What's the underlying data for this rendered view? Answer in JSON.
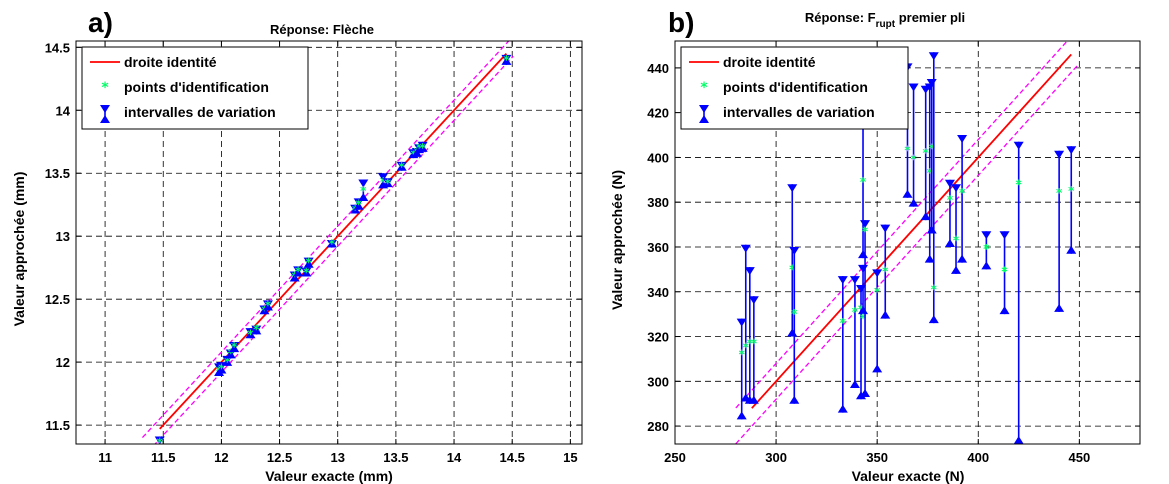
{
  "chart_data": [
    {
      "panel_letter": "a)",
      "type": "scatter",
      "title": "Réponse: Flèche",
      "xlabel": "Valeur exacte (mm)",
      "ylabel": "Valeur approchée (mm)",
      "xlim": [
        10.75,
        15.1
      ],
      "ylim": [
        11.35,
        14.55
      ],
      "xticks": [
        "11",
        "11.5",
        "12",
        "12.5",
        "13",
        "13.5",
        "14",
        "14.5",
        "15"
      ],
      "yticks": [
        "11.5",
        "12",
        "12.5",
        "13",
        "13.5",
        "14",
        "14.5"
      ],
      "grid": true,
      "legend_position": "top-left",
      "legend": [
        "droite identité",
        "points d'identification",
        "intervalles de variation"
      ],
      "identity_line": {
        "x": [
          11.47,
          14.45
        ],
        "color": "#ff0000"
      },
      "bound_lines": {
        "offset": 0.08,
        "color": "#ff00ff"
      },
      "points": [
        {
          "x": 11.47,
          "y": 11.36,
          "lo": 11.3,
          "hi": 11.41
        },
        {
          "x": 11.98,
          "y": 11.93,
          "lo": 11.89,
          "hi": 11.99
        },
        {
          "x": 12.0,
          "y": 11.95,
          "lo": 11.91,
          "hi": 12.0
        },
        {
          "x": 12.05,
          "y": 12.0,
          "lo": 11.97,
          "hi": 12.05
        },
        {
          "x": 12.08,
          "y": 12.07,
          "lo": 12.03,
          "hi": 12.1
        },
        {
          "x": 12.11,
          "y": 12.12,
          "lo": 12.08,
          "hi": 12.16
        },
        {
          "x": 12.25,
          "y": 12.22,
          "lo": 12.19,
          "hi": 12.27
        },
        {
          "x": 12.3,
          "y": 12.26,
          "lo": 12.22,
          "hi": 12.29
        },
        {
          "x": 12.37,
          "y": 12.41,
          "lo": 12.38,
          "hi": 12.45
        },
        {
          "x": 12.4,
          "y": 12.45,
          "lo": 12.41,
          "hi": 12.49
        },
        {
          "x": 12.63,
          "y": 12.68,
          "lo": 12.64,
          "hi": 12.72
        },
        {
          "x": 12.66,
          "y": 12.72,
          "lo": 12.68,
          "hi": 12.76
        },
        {
          "x": 12.73,
          "y": 12.71,
          "lo": 12.68,
          "hi": 12.75
        },
        {
          "x": 12.75,
          "y": 12.79,
          "lo": 12.75,
          "hi": 12.83
        },
        {
          "x": 12.95,
          "y": 12.94,
          "lo": 12.91,
          "hi": 12.97
        },
        {
          "x": 13.15,
          "y": 13.21,
          "lo": 13.18,
          "hi": 13.25
        },
        {
          "x": 13.18,
          "y": 13.25,
          "lo": 13.21,
          "hi": 13.3
        },
        {
          "x": 13.22,
          "y": 13.36,
          "lo": 13.28,
          "hi": 13.45
        },
        {
          "x": 13.39,
          "y": 13.43,
          "lo": 13.38,
          "hi": 13.5
        },
        {
          "x": 13.43,
          "y": 13.42,
          "lo": 13.39,
          "hi": 13.46
        },
        {
          "x": 13.55,
          "y": 13.55,
          "lo": 13.52,
          "hi": 13.59
        },
        {
          "x": 13.65,
          "y": 13.65,
          "lo": 13.62,
          "hi": 13.69
        },
        {
          "x": 13.68,
          "y": 13.67,
          "lo": 13.63,
          "hi": 13.7
        },
        {
          "x": 13.7,
          "y": 13.7,
          "lo": 13.66,
          "hi": 13.73
        },
        {
          "x": 13.73,
          "y": 13.7,
          "lo": 13.67,
          "hi": 13.75
        },
        {
          "x": 14.45,
          "y": 14.4,
          "lo": 14.36,
          "hi": 14.44
        }
      ]
    },
    {
      "panel_letter": "b)",
      "type": "scatter",
      "title_prefix": "Réponse: F",
      "title_sub": "rupt",
      "title_suffix": " premier pli",
      "xlabel": "Valeur exacte (N)",
      "ylabel": "Valeur approchée (N)",
      "xlim": [
        250,
        480
      ],
      "ylim": [
        272,
        452
      ],
      "xticks": [
        "250",
        "300",
        "350",
        "400",
        "450"
      ],
      "yticks": [
        "280",
        "300",
        "320",
        "340",
        "360",
        "380",
        "400",
        "420",
        "440"
      ],
      "grid": true,
      "legend_position": "top-left",
      "legend": [
        "droite identité",
        "points d'identification",
        "intervalles de variation"
      ],
      "identity_line": {
        "x": [
          288,
          446
        ],
        "color": "#ff0000"
      },
      "bound_lines": {
        "offset": 8,
        "color": "#ff00ff"
      },
      "points": [
        {
          "x": 283,
          "y": 312,
          "lo": 283,
          "hi": 328
        },
        {
          "x": 285,
          "y": 315,
          "lo": 291,
          "hi": 361
        },
        {
          "x": 287,
          "y": 317,
          "lo": 290,
          "hi": 351
        },
        {
          "x": 289,
          "y": 317,
          "lo": 290,
          "hi": 338
        },
        {
          "x": 308,
          "y": 350,
          "lo": 320,
          "hi": 388
        },
        {
          "x": 309,
          "y": 330,
          "lo": 290,
          "hi": 360
        },
        {
          "x": 333,
          "y": 326,
          "lo": 286,
          "hi": 347
        },
        {
          "x": 339,
          "y": 331,
          "lo": 297,
          "hi": 347
        },
        {
          "x": 342,
          "y": 332,
          "lo": 292,
          "hi": 343
        },
        {
          "x": 343,
          "y": 328,
          "lo": 330,
          "hi": 352
        },
        {
          "x": 343,
          "y": 389,
          "lo": 355,
          "hi": 420
        },
        {
          "x": 344,
          "y": 367,
          "lo": 293,
          "hi": 372
        },
        {
          "x": 350,
          "y": 340,
          "lo": 304,
          "hi": 350
        },
        {
          "x": 354,
          "y": 349,
          "lo": 328,
          "hi": 370
        },
        {
          "x": 365,
          "y": 403,
          "lo": 382,
          "hi": 442
        },
        {
          "x": 368,
          "y": 399,
          "lo": 378,
          "hi": 433
        },
        {
          "x": 374,
          "y": 402,
          "lo": 372,
          "hi": 432
        },
        {
          "x": 376,
          "y": 393,
          "lo": 353,
          "hi": 433
        },
        {
          "x": 377,
          "y": 404,
          "lo": 366,
          "hi": 435
        },
        {
          "x": 378,
          "y": 341,
          "lo": 326,
          "hi": 447
        },
        {
          "x": 386,
          "y": 381,
          "lo": 360,
          "hi": 390
        },
        {
          "x": 389,
          "y": 363,
          "lo": 348,
          "hi": 388
        },
        {
          "x": 392,
          "y": 384,
          "lo": 353,
          "hi": 410
        },
        {
          "x": 404,
          "y": 359,
          "lo": 350,
          "hi": 367
        },
        {
          "x": 413,
          "y": 349,
          "lo": 330,
          "hi": 367
        },
        {
          "x": 420,
          "y": 388,
          "lo": 272,
          "hi": 407
        },
        {
          "x": 440,
          "y": 384,
          "lo": 331,
          "hi": 403
        },
        {
          "x": 446,
          "y": 385,
          "lo": 357,
          "hi": 405
        }
      ]
    }
  ]
}
